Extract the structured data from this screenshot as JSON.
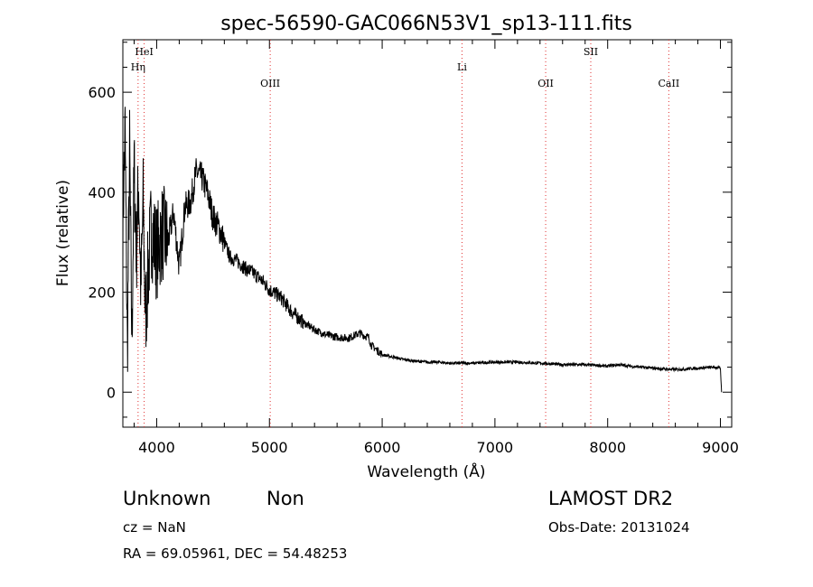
{
  "chart_data": {
    "type": "line",
    "title": "spec-56590-GAC066N53V1_sp13-111.fits",
    "xlabel": "Wavelength (Å)",
    "ylabel": "Flux (relative)",
    "xlim": [
      3700,
      9100
    ],
    "ylim": [
      -70,
      705
    ],
    "xticks": [
      4000,
      5000,
      6000,
      7000,
      8000,
      9000
    ],
    "yticks": [
      0,
      200,
      400,
      600
    ],
    "grid": false,
    "lines": [
      {
        "name": "HeI",
        "x": 3889,
        "tier": 0
      },
      {
        "name": "Hη",
        "x": 3835,
        "tier": 1
      },
      {
        "name": "OIII",
        "x": 5007,
        "tier": 2
      },
      {
        "name": "Li",
        "x": 6708,
        "tier": 1
      },
      {
        "name": "OII",
        "x": 7450,
        "tier": 2
      },
      {
        "name": "SII",
        "x": 7850,
        "tier": 0
      },
      {
        "name": "CaII",
        "x": 8542,
        "tier": 2
      }
    ],
    "series": [
      {
        "x": [
          3700,
          3720,
          3740,
          3760,
          3780,
          3800,
          3820,
          3840,
          3860,
          3880,
          3900,
          3950,
          4000,
          4050,
          4100,
          4150,
          4200,
          4250,
          4300,
          4350,
          4400,
          4450,
          4500,
          4550,
          4600,
          4650,
          4700,
          4750,
          4800,
          4850,
          4900,
          4950,
          5000,
          5100,
          5200,
          5300,
          5400,
          5500,
          5600,
          5700,
          5800,
          5850,
          5880,
          5900,
          5950,
          6000,
          6100,
          6200,
          6300,
          6400,
          6500,
          6600,
          6700,
          6800,
          7000,
          7200,
          7400,
          7600,
          7800,
          8000,
          8100,
          8200,
          8400,
          8600,
          8800,
          8950,
          9000,
          9010
        ],
        "values": [
          350,
          520,
          80,
          480,
          100,
          450,
          280,
          420,
          200,
          380,
          150,
          330,
          280,
          320,
          300,
          360,
          250,
          370,
          380,
          440,
          430,
          400,
          350,
          330,
          300,
          270,
          265,
          255,
          245,
          240,
          230,
          220,
          205,
          190,
          160,
          140,
          125,
          115,
          110,
          108,
          118,
          112,
          110,
          95,
          85,
          75,
          70,
          65,
          62,
          60,
          60,
          58,
          58,
          58,
          60,
          60,
          58,
          55,
          55,
          52,
          55,
          52,
          48,
          45,
          48,
          50,
          48,
          0
        ]
      }
    ]
  },
  "footer": {
    "object_class": "Unknown",
    "subclass": "Non",
    "survey": "LAMOST DR2",
    "cz": "cz = NaN",
    "obs_date": "Obs-Date: 20131024",
    "coords": "RA =  69.05961, DEC =  54.48253"
  }
}
